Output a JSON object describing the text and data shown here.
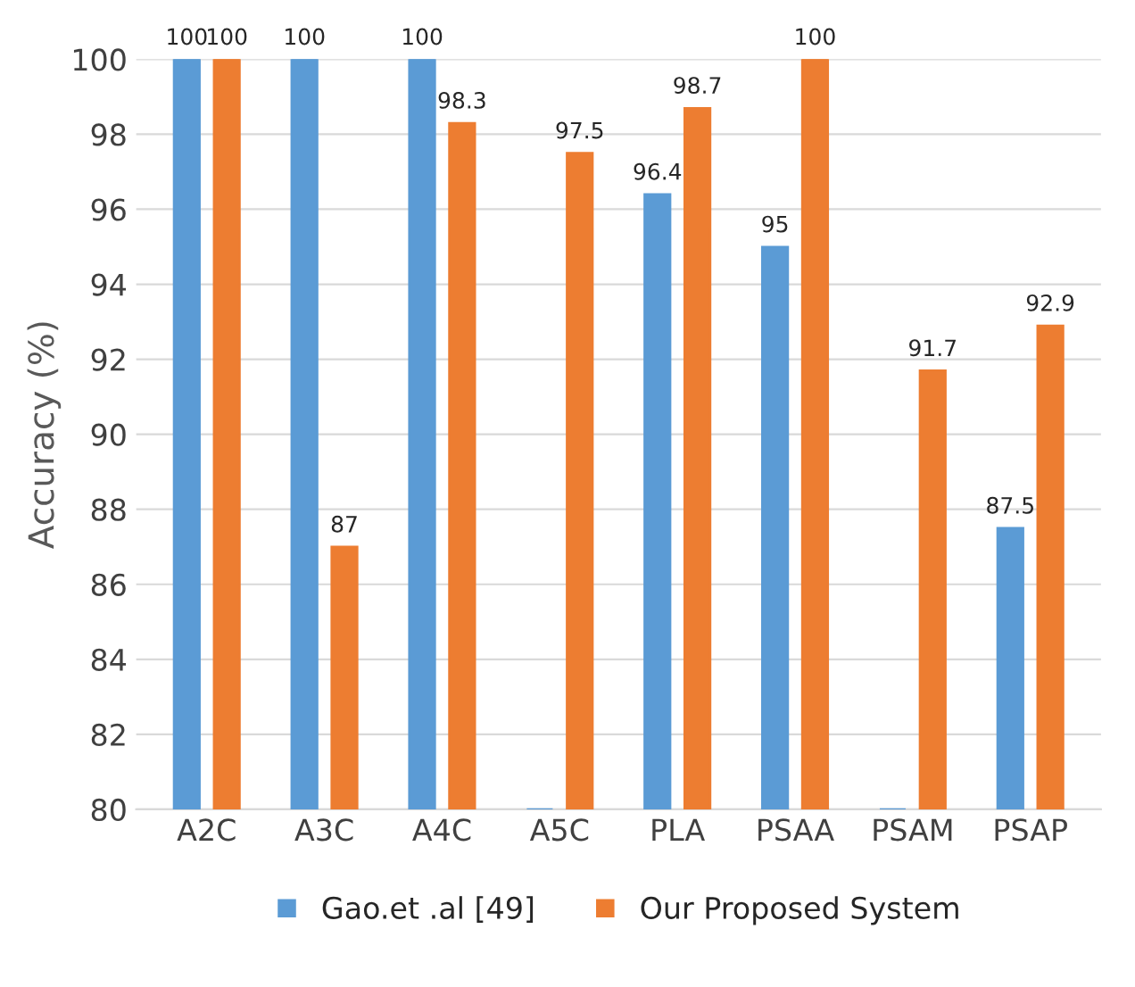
{
  "chart_data": {
    "type": "bar",
    "ylabel": "Accuracy (%)",
    "categories": [
      "A2C",
      "A3C",
      "A4C",
      "A5C",
      "PLA",
      "PSAA",
      "PSAM",
      "PSAP"
    ],
    "series": [
      {
        "name": "Gao.et .al [49]",
        "color": "#5b9bd5",
        "values": [
          100,
          100,
          100,
          80,
          96.4,
          95,
          80,
          87.5
        ],
        "value_labels": [
          "100",
          "100",
          "100",
          null,
          "96.4",
          "95",
          null,
          "87.5"
        ]
      },
      {
        "name": "Our Proposed System",
        "color": "#ed7d31",
        "values": [
          100,
          87,
          98.3,
          97.5,
          98.7,
          100,
          91.7,
          92.9
        ],
        "value_labels": [
          "100",
          "87",
          "98.3",
          "97.5",
          "98.7",
          "100",
          "91.7",
          "92.9"
        ]
      }
    ],
    "ylim": [
      80,
      100
    ],
    "yticks": [
      80,
      82,
      84,
      86,
      88,
      90,
      92,
      94,
      96,
      98,
      100
    ],
    "grid": "y",
    "legend": "bottom"
  }
}
